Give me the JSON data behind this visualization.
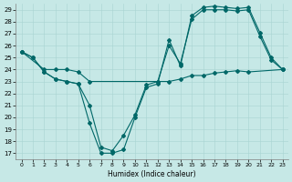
{
  "title": "",
  "xlabel": "Humidex (Indice chaleur)",
  "xlim": [
    -0.5,
    23.5
  ],
  "ylim": [
    16.5,
    29.5
  ],
  "yticks": [
    17,
    18,
    19,
    20,
    21,
    22,
    23,
    24,
    25,
    26,
    27,
    28,
    29
  ],
  "xticks": [
    0,
    1,
    2,
    3,
    4,
    5,
    6,
    7,
    8,
    9,
    10,
    11,
    12,
    13,
    14,
    15,
    16,
    17,
    18,
    19,
    20,
    21,
    22,
    23
  ],
  "bg_color": "#c6e8e6",
  "grid_color": "#a8d4d2",
  "line_color": "#006868",
  "line1_x": [
    0,
    1,
    2,
    3,
    4,
    5,
    6,
    7,
    8,
    9,
    10,
    11,
    12,
    13,
    14,
    15,
    16,
    17,
    18,
    19,
    20,
    21,
    22,
    23
  ],
  "line1_y": [
    25.5,
    25.0,
    23.8,
    23.2,
    23.0,
    22.8,
    19.5,
    17.0,
    17.0,
    17.3,
    20.0,
    22.5,
    22.8,
    26.5,
    24.3,
    28.5,
    29.2,
    29.3,
    29.2,
    29.1,
    29.2,
    27.1,
    25.0,
    24.0
  ],
  "line2_x": [
    0,
    1,
    2,
    3,
    4,
    5,
    6,
    7,
    8,
    9,
    10,
    11,
    12,
    13,
    14,
    15,
    16,
    17,
    18,
    19,
    20,
    21,
    22,
    23
  ],
  "line2_y": [
    25.5,
    25.0,
    23.8,
    23.2,
    23.0,
    22.8,
    21.0,
    17.5,
    17.2,
    18.5,
    20.2,
    22.7,
    23.0,
    26.0,
    24.5,
    28.2,
    29.0,
    29.0,
    29.0,
    28.9,
    29.0,
    26.8,
    24.8,
    24.0
  ],
  "line3_x": [
    0,
    2,
    3,
    4,
    5,
    6,
    12,
    13,
    14,
    15,
    16,
    17,
    18,
    19,
    20,
    23
  ],
  "line3_y": [
    25.5,
    24.0,
    24.0,
    24.0,
    23.8,
    23.0,
    23.0,
    23.0,
    23.2,
    23.5,
    23.5,
    23.7,
    23.8,
    23.9,
    23.8,
    24.0
  ]
}
